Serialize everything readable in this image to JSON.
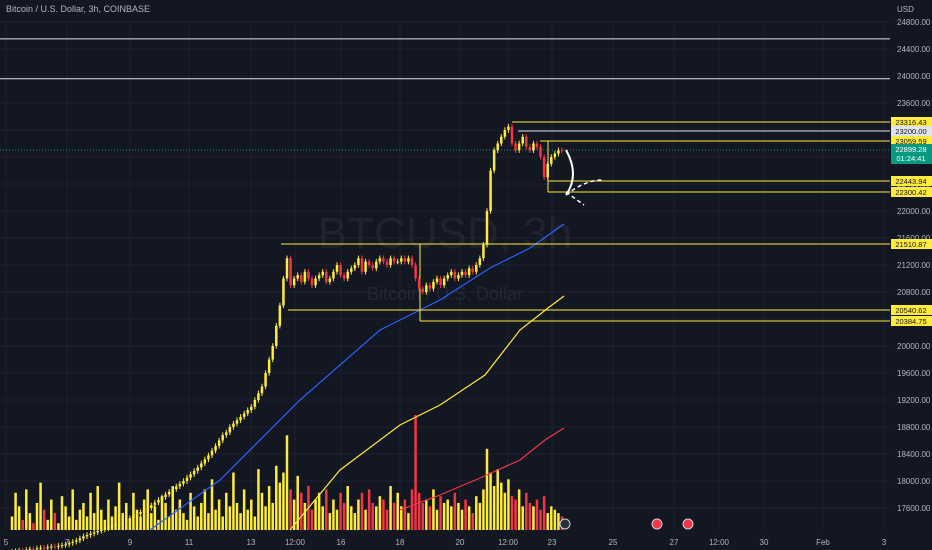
{
  "header": {
    "title": "Bitcoin / U.S. Dollar, 3h, COINBASE",
    "currency": "USD",
    "watermark_symbol": "BTCUSD, 3h",
    "watermark_name": "Bitcoin / U.S. Dollar"
  },
  "colors": {
    "background": "#131722",
    "up": "#ffeb3b",
    "down": "#f23645",
    "ma_fast": "#2962ff",
    "ma_mid": "#ffeb3b",
    "ma_slow": "#f23645",
    "level_line": "#ffeb3b",
    "white_line": "#e0e3eb",
    "last_price": "#089981"
  },
  "chart_data": {
    "type": "candlestick",
    "symbol": "BTCUSD",
    "interval": "3h",
    "price_axis_ticks": [
      "24800.00",
      "24400.00",
      "24000.00",
      "23600.00",
      "23200.00",
      "22800.00",
      "22400.00",
      "22000.00",
      "21600.00",
      "21200.00",
      "20800.00",
      "20400.00",
      "20000.00",
      "19600.00",
      "19200.00",
      "18800.00",
      "18400.00",
      "18000.00",
      "17600.00"
    ],
    "time_axis_ticks": [
      "5",
      "7",
      "9",
      "11",
      "13",
      "12:00",
      "16",
      "18",
      "20",
      "12:00",
      "23",
      "25",
      "27",
      "12:00",
      "30",
      "Feb",
      "3"
    ],
    "horizontal_levels": [
      {
        "label": "23316.43",
        "price": 23316.43,
        "color": "yellow"
      },
      {
        "label": "23200.00",
        "price": 23200.0,
        "color": "white"
      },
      {
        "label": "23059.59",
        "price": 23059.59,
        "color": "yellow"
      },
      {
        "label": "22443.94",
        "price": 22443.94,
        "color": "yellow"
      },
      {
        "label": "22300.42",
        "price": 22300.42,
        "color": "yellow"
      },
      {
        "label": "21510.87",
        "price": 21510.87,
        "color": "yellow"
      },
      {
        "label": "20540.62",
        "price": 20540.62,
        "color": "yellow"
      },
      {
        "label": "20384.75",
        "price": 20384.75,
        "color": "yellow"
      }
    ],
    "resistance_lines": [
      24550,
      23960
    ],
    "last_price": {
      "label": "22899.28",
      "countdown": "01:24:41",
      "price": 22899.28
    },
    "closes": [
      16950,
      16960,
      16970,
      16965,
      16980,
      16990,
      16985,
      17000,
      17010,
      17005,
      17020,
      17030,
      17025,
      17040,
      17050,
      17060,
      17080,
      17100,
      17120,
      17150,
      17180,
      17200,
      17220,
      17240,
      17260,
      17280,
      17300,
      17320,
      17340,
      17360,
      17380,
      17400,
      17420,
      17450,
      17480,
      17510,
      17540,
      17570,
      17600,
      17640,
      17680,
      17720,
      17760,
      17800,
      17840,
      17880,
      17920,
      17960,
      18000,
      18050,
      18100,
      18150,
      18200,
      18260,
      18320,
      18380,
      18450,
      18520,
      18600,
      18680,
      18720,
      18800,
      18850,
      18900,
      18950,
      19000,
      19050,
      19100,
      19200,
      19300,
      19400,
      19600,
      19800,
      20000,
      20300,
      20600,
      21000,
      21300,
      20900,
      21000,
      21050,
      20950,
      21100,
      21000,
      20900,
      21000,
      21050,
      21100,
      20950,
      21000,
      21100,
      21200,
      21050,
      21000,
      21100,
      21150,
      21200,
      21300,
      21100,
      21250,
      21200,
      21150,
      21250,
      21300,
      21250,
      21200,
      21300,
      21250,
      21250,
      21300,
      21250,
      21300,
      21200,
      21000,
      20850,
      20800,
      20900,
      20850,
      20950,
      21000,
      20900,
      21000,
      21050,
      21100,
      21000,
      21050,
      21100,
      21050,
      21150,
      21100,
      21200,
      21300,
      21500,
      22000,
      22600,
      22900,
      23000,
      23100,
      23200,
      23250,
      23000,
      22900,
      23000,
      23100,
      22950,
      22900,
      23000,
      22950,
      22800,
      22500,
      22700,
      22800,
      22850,
      22900,
      22899.28
    ],
    "volumes": [
      20,
      55,
      35,
      15,
      60,
      25,
      10,
      40,
      70,
      30,
      15,
      45,
      25,
      10,
      50,
      35,
      20,
      60,
      15,
      30,
      40,
      20,
      55,
      25,
      65,
      30,
      15,
      45,
      20,
      35,
      70,
      25,
      40,
      15,
      55,
      30,
      20,
      45,
      60,
      25,
      35,
      15,
      50,
      40,
      20,
      65,
      30,
      45,
      25,
      15,
      55,
      35,
      20,
      40,
      60,
      25,
      75,
      30,
      45,
      20,
      55,
      35,
      85,
      40,
      25,
      60,
      30,
      45,
      20,
      90,
      55,
      35,
      65,
      40,
      95,
      70,
      85,
      140,
      60,
      45,
      80,
      55,
      40,
      65,
      30,
      45,
      55,
      35,
      60,
      25,
      45,
      30,
      55,
      40,
      65,
      35,
      25,
      45,
      55,
      30,
      60,
      40,
      35,
      50,
      45,
      30,
      65,
      40,
      55,
      35,
      45,
      25,
      60,
      170,
      55,
      40,
      45,
      35,
      60,
      30,
      50,
      40,
      45,
      35,
      55,
      40,
      30,
      45,
      35,
      25,
      50,
      40,
      60,
      120,
      85,
      65,
      90,
      70,
      55,
      75,
      50,
      45,
      60,
      35,
      55,
      40,
      35,
      45,
      30,
      50,
      25,
      35,
      30,
      25,
      20
    ],
    "moving_averages": [
      {
        "color": "#2962ff",
        "start": 16950,
        "end": 21950
      },
      {
        "color": "#ffeb3b",
        "start": 16950,
        "end": 20700
      },
      {
        "color": "#f23645",
        "start": 17300,
        "end": 18780
      }
    ]
  }
}
